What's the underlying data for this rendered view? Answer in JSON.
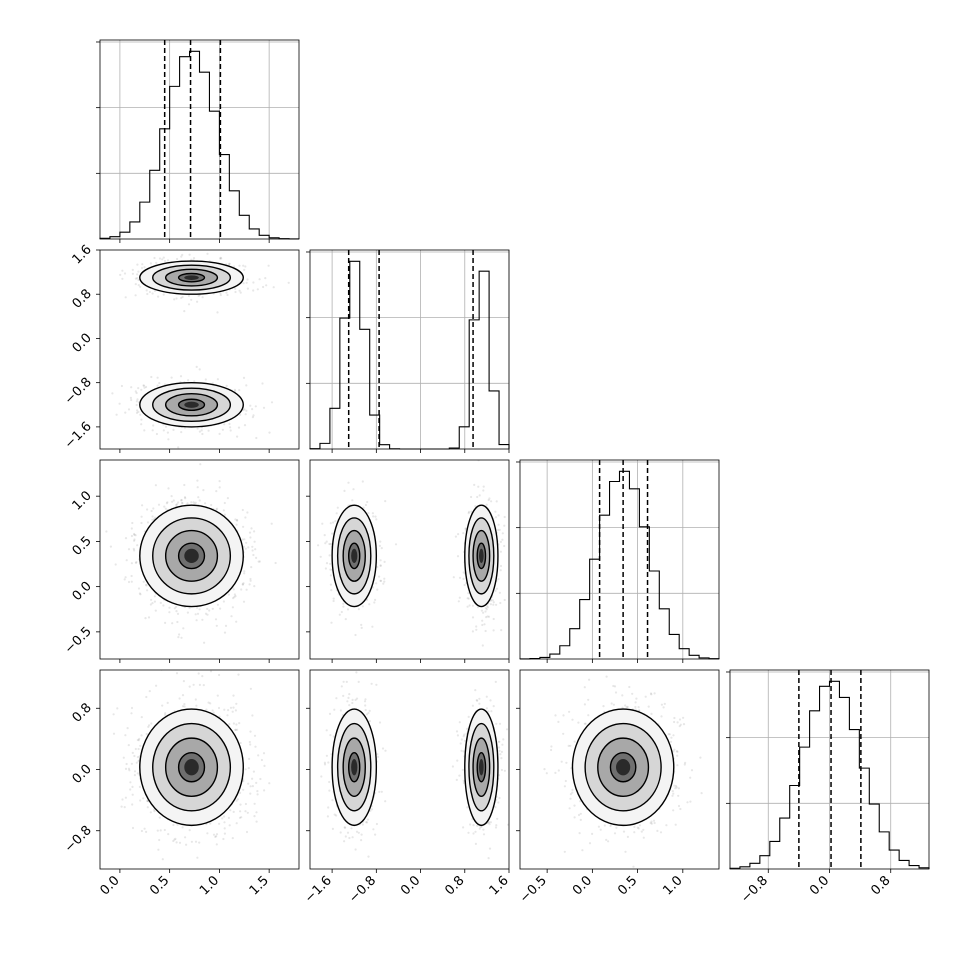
{
  "chart_data": {
    "type": "corner",
    "title": "",
    "dimensions": [
      {
        "label": "",
        "range": [
          -0.2,
          1.8
        ],
        "ticks": [
          "0.0",
          "0.5",
          "1.0",
          "1.5"
        ],
        "tick_values": [
          0.0,
          0.5,
          1.0,
          1.5
        ],
        "quantiles": [
          0.45,
          0.71,
          1.01
        ],
        "distribution": [
          {
            "center": 0.72,
            "sigma": 0.26,
            "weight": 1.0
          }
        ]
      },
      {
        "label": "",
        "range": [
          -2.0,
          1.6
        ],
        "ticks": [
          "−1.6",
          "−0.8",
          "0.0",
          "0.8",
          "1.6"
        ],
        "tick_values": [
          -1.6,
          -0.8,
          0.0,
          0.8,
          1.6
        ],
        "quantiles": [
          -1.3,
          -0.75,
          0.95
        ],
        "distribution": [
          {
            "center": -1.2,
            "sigma": 0.2,
            "weight": 0.5
          },
          {
            "center": 1.1,
            "sigma": 0.15,
            "weight": 0.5
          }
        ]
      },
      {
        "label": "",
        "range": [
          -0.8,
          1.4
        ],
        "ticks": [
          "−0.5",
          "0.0",
          "0.5",
          "1.0"
        ],
        "tick_values": [
          -0.5,
          0.0,
          0.5,
          1.0
        ],
        "quantiles": [
          0.08,
          0.34,
          0.61
        ],
        "distribution": [
          {
            "center": 0.34,
            "sigma": 0.28,
            "weight": 1.0
          }
        ]
      },
      {
        "label": "",
        "range": [
          -1.3,
          1.3
        ],
        "ticks": [
          "−0.8",
          "0.0",
          "0.8"
        ],
        "tick_values": [
          -0.8,
          0.0,
          0.8
        ],
        "quantiles": [
          -0.4,
          0.02,
          0.41
        ],
        "distribution": [
          {
            "center": 0.03,
            "sigma": 0.38,
            "weight": 1.0
          }
        ]
      }
    ],
    "grid": true,
    "quantile_lines": "dashed",
    "contour_levels": [
      0.5,
      1.0,
      1.5,
      2.0
    ]
  }
}
